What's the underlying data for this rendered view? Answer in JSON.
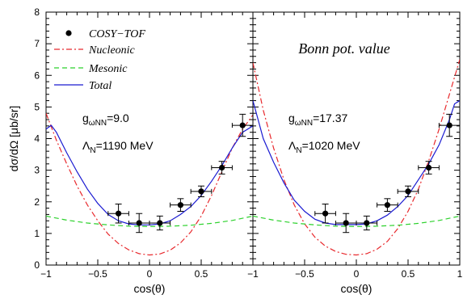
{
  "chart_data": {
    "type": "line",
    "ylabel": "dσ/dΩ [μb/sr]",
    "ylim": [
      0,
      8
    ],
    "yticks": [
      "0",
      "1",
      "2",
      "3",
      "4",
      "5",
      "6",
      "7",
      "8"
    ],
    "xticks": [
      "−1",
      "−0.5",
      "0",
      "0.5",
      "1"
    ],
    "legend": {
      "placement": "top-left",
      "entries": [
        {
          "label": "COSY−TOF",
          "style": "points",
          "color": "#000000"
        },
        {
          "label": "Nucleonic",
          "style": "dash-dot",
          "color": "#e8292d"
        },
        {
          "label": "Mesonic",
          "style": "dashed",
          "color": "#2bd12b"
        },
        {
          "label": "Total",
          "style": "solid",
          "color": "#1a1ad1"
        }
      ]
    },
    "panels": [
      {
        "xlabel": "cos(θ)",
        "xlim": [
          -1,
          1
        ],
        "title": "",
        "annotations": [
          {
            "main": "g",
            "sub": "ωNN",
            "rest": "=9.0"
          },
          {
            "main": "Λ",
            "sub": "N",
            "rest": "=1190 MeV"
          }
        ],
        "data_points": {
          "x": [
            -0.3,
            -0.1,
            0.1,
            0.3,
            0.5,
            0.7,
            0.9
          ],
          "y": [
            1.63,
            1.33,
            1.33,
            1.9,
            2.33,
            3.08,
            4.42
          ],
          "xerr": [
            0.1,
            0.1,
            0.1,
            0.1,
            0.1,
            0.1,
            0.1
          ],
          "yerr": [
            0.3,
            0.3,
            0.22,
            0.2,
            0.17,
            0.2,
            0.35
          ]
        },
        "series": [
          {
            "name": "Nucleonic",
            "x": [
              -1.0,
              -0.9,
              -0.8,
              -0.7,
              -0.6,
              -0.5,
              -0.4,
              -0.3,
              -0.2,
              -0.1,
              0.0,
              0.1,
              0.2,
              0.3,
              0.4,
              0.5,
              0.6,
              0.7,
              0.8,
              0.9,
              1.0
            ],
            "y": [
              4.8,
              3.95,
              3.2,
              2.5,
              1.9,
              1.4,
              0.98,
              0.68,
              0.48,
              0.36,
              0.32,
              0.35,
              0.47,
              0.7,
              1.05,
              1.55,
              2.2,
              2.95,
              3.7,
              4.3,
              4.75
            ]
          },
          {
            "name": "Mesonic",
            "x": [
              -1.0,
              -0.8,
              -0.6,
              -0.4,
              -0.2,
              0.0,
              0.2,
              0.4,
              0.6,
              0.8,
              1.0
            ],
            "y": [
              1.55,
              1.42,
              1.33,
              1.27,
              1.23,
              1.22,
              1.23,
              1.26,
              1.32,
              1.41,
              1.55
            ]
          },
          {
            "name": "Total",
            "x": [
              -1.0,
              -0.95,
              -0.9,
              -0.8,
              -0.7,
              -0.6,
              -0.5,
              -0.4,
              -0.3,
              -0.2,
              -0.1,
              0.0,
              0.1,
              0.2,
              0.3,
              0.4,
              0.5,
              0.6,
              0.7,
              0.8,
              0.9,
              1.0
            ],
            "y": [
              4.3,
              4.42,
              4.2,
              3.55,
              2.95,
              2.4,
              1.95,
              1.6,
              1.4,
              1.3,
              1.27,
              1.27,
              1.3,
              1.4,
              1.6,
              1.85,
              2.2,
              2.65,
              3.15,
              3.7,
              4.2,
              4.4
            ]
          }
        ]
      },
      {
        "xlabel": "cos(θ)",
        "xlim": [
          -1,
          1
        ],
        "title": "Bonn pot. value",
        "annotations": [
          {
            "main": "g",
            "sub": "ωNN",
            "rest": "=17.37"
          },
          {
            "main": "Λ",
            "sub": "N",
            "rest": "=1020 MeV"
          }
        ],
        "data_points": {
          "x": [
            -0.3,
            -0.1,
            0.1,
            0.3,
            0.5,
            0.7,
            0.9
          ],
          "y": [
            1.63,
            1.33,
            1.33,
            1.9,
            2.33,
            3.08,
            4.42
          ],
          "xerr": [
            0.1,
            0.1,
            0.1,
            0.1,
            0.1,
            0.1,
            0.1
          ],
          "yerr": [
            0.3,
            0.3,
            0.22,
            0.2,
            0.17,
            0.2,
            0.35
          ]
        },
        "series": [
          {
            "name": "Nucleonic",
            "x": [
              -1.0,
              -0.9,
              -0.8,
              -0.7,
              -0.6,
              -0.5,
              -0.4,
              -0.3,
              -0.2,
              -0.1,
              0.0,
              0.1,
              0.2,
              0.3,
              0.4,
              0.5,
              0.6,
              0.7,
              0.8,
              0.9,
              1.0
            ],
            "y": [
              6.4,
              4.9,
              3.7,
              2.7,
              1.9,
              1.3,
              0.88,
              0.6,
              0.43,
              0.34,
              0.32,
              0.36,
              0.5,
              0.75,
              1.15,
              1.7,
              2.4,
              3.3,
              4.3,
              5.4,
              6.5
            ]
          },
          {
            "name": "Mesonic",
            "x": [
              -1.0,
              -0.8,
              -0.6,
              -0.4,
              -0.2,
              0.0,
              0.2,
              0.4,
              0.6,
              0.8,
              1.0
            ],
            "y": [
              1.55,
              1.42,
              1.33,
              1.27,
              1.23,
              1.22,
              1.23,
              1.26,
              1.32,
              1.41,
              1.55
            ]
          },
          {
            "name": "Total",
            "x": [
              -1.0,
              -0.95,
              -0.9,
              -0.8,
              -0.7,
              -0.6,
              -0.5,
              -0.4,
              -0.3,
              -0.2,
              -0.1,
              0.0,
              0.1,
              0.2,
              0.3,
              0.4,
              0.5,
              0.6,
              0.7,
              0.8,
              0.9,
              0.95,
              1.0
            ],
            "y": [
              5.2,
              4.6,
              4.0,
              3.25,
              2.6,
              2.05,
              1.7,
              1.45,
              1.33,
              1.28,
              1.28,
              1.28,
              1.3,
              1.4,
              1.58,
              1.85,
              2.2,
              2.7,
              3.2,
              3.8,
              4.6,
              5.1,
              5.2
            ]
          }
        ]
      }
    ]
  }
}
